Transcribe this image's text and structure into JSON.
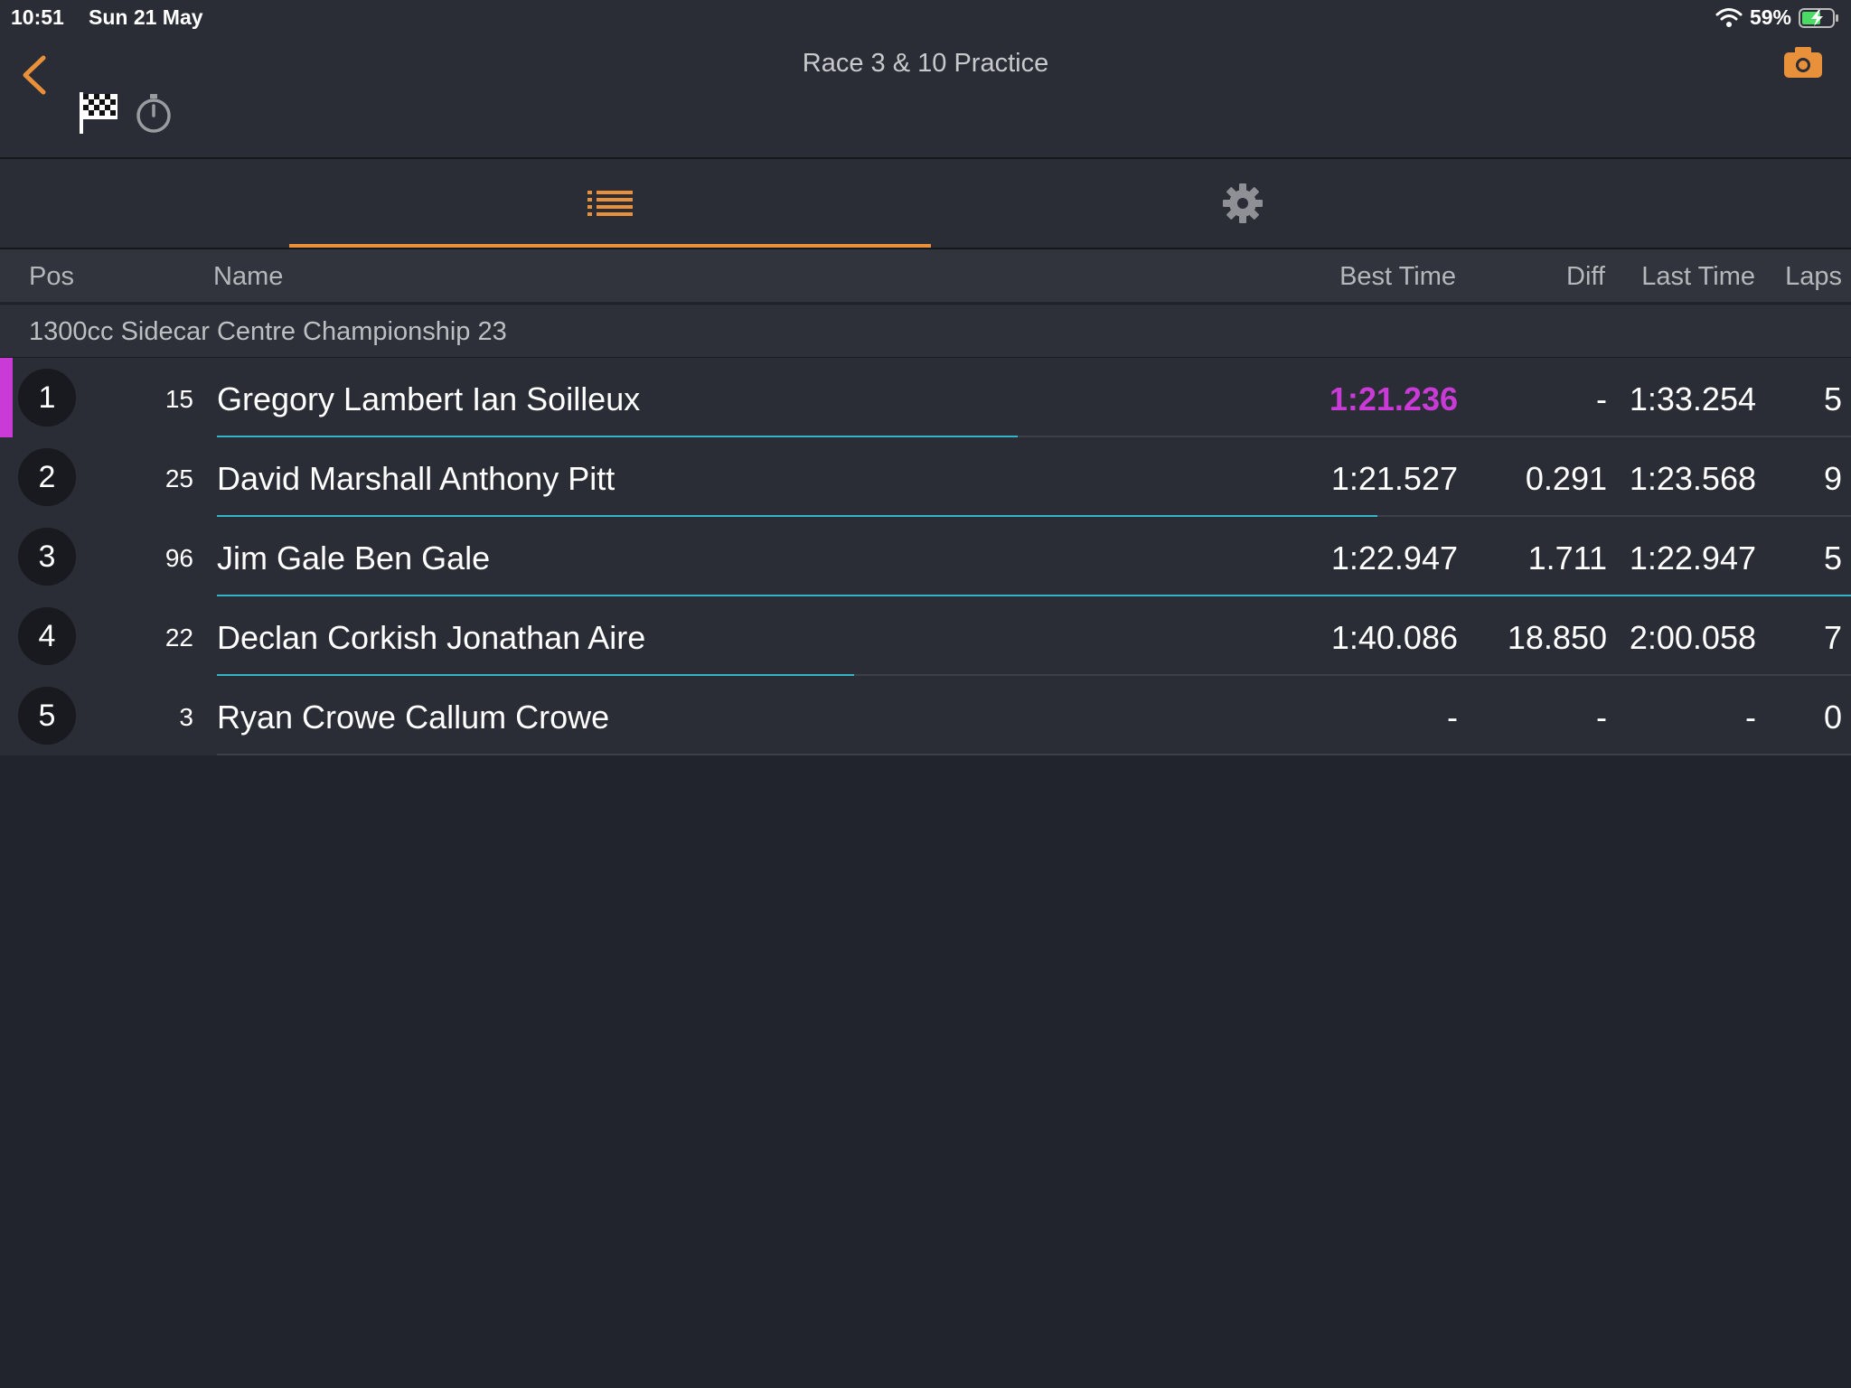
{
  "status": {
    "time": "10:51",
    "date": "Sun 21 May",
    "battery": "59%"
  },
  "header": {
    "title": "Race 3 & 10 Practice"
  },
  "columns": {
    "pos": "Pos",
    "name": "Name",
    "best": "Best Time",
    "diff": "Diff",
    "last": "Last Time",
    "laps": "Laps"
  },
  "group": {
    "label": "1300cc Sidecar Centre Championship 23"
  },
  "rows": [
    {
      "pos": "1",
      "num": "15",
      "name": "Gregory Lambert Ian Soilleux",
      "best": "1:21.236",
      "diff": "-",
      "last": "1:33.254",
      "laps": "5",
      "progress": 0.49
    },
    {
      "pos": "2",
      "num": "25",
      "name": "David Marshall Anthony Pitt",
      "best": "1:21.527",
      "diff": "0.291",
      "last": "1:23.568",
      "laps": "9",
      "progress": 0.71
    },
    {
      "pos": "3",
      "num": "96",
      "name": "Jim Gale Ben Gale",
      "best": "1:22.947",
      "diff": "1.711",
      "last": "1:22.947",
      "laps": "5",
      "progress": 1.0
    },
    {
      "pos": "4",
      "num": "22",
      "name": "Declan Corkish Jonathan Aire",
      "best": "1:40.086",
      "diff": "18.850",
      "last": "2:00.058",
      "laps": "7",
      "progress": 0.39
    },
    {
      "pos": "5",
      "num": "3",
      "name": "Ryan Crowe Callum Crowe",
      "best": "-",
      "diff": "-",
      "last": "-",
      "laps": "0",
      "progress": 0
    }
  ],
  "colors": {
    "accent": "#e8903a",
    "best_lap": "#c93ad6",
    "progress": "#35b6c8"
  },
  "icons": {
    "back": "chevron-left-icon",
    "flag": "checkered-flag-icon",
    "stopwatch": "stopwatch-icon",
    "camera": "camera-icon",
    "list": "list-icon",
    "settings": "gear-icon",
    "wifi": "wifi-icon",
    "battery": "battery-charging-icon"
  }
}
